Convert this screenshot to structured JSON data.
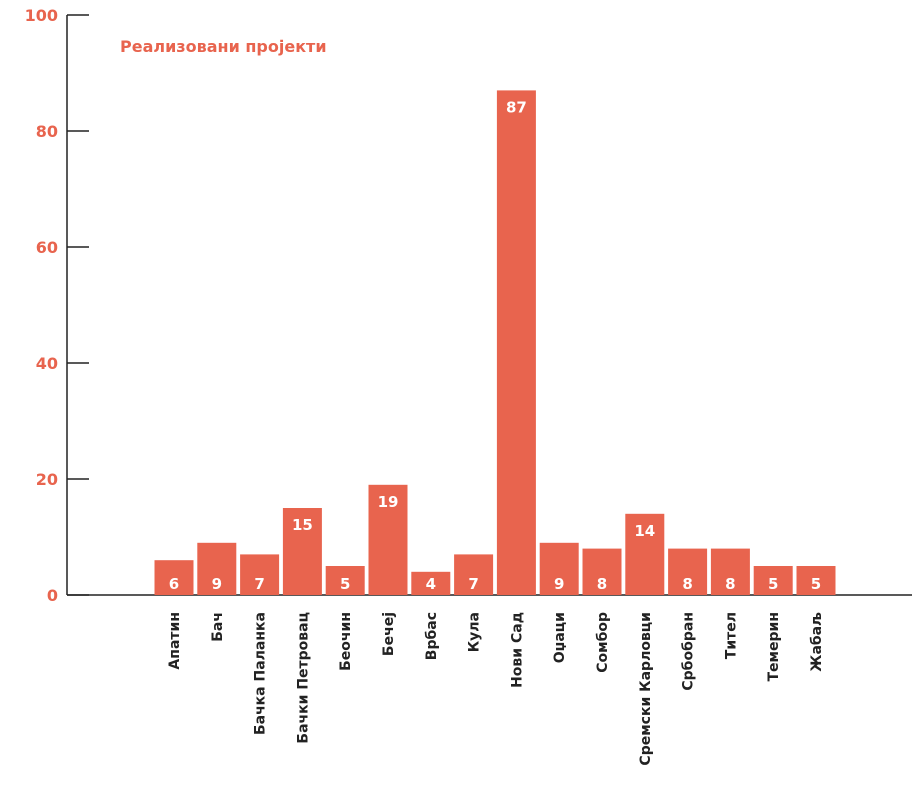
{
  "chart_data": {
    "type": "bar",
    "title": "Реализовани пројекти",
    "categories": [
      "Апатин",
      "Бач",
      "Бачка Паланка",
      "Бачки Петровац",
      "Беочин",
      "Бечеј",
      "Врбас",
      "Кула",
      "Нови Сад",
      "Оџаци",
      "Сомбор",
      "Сремски Карловци",
      "Србобран",
      "Тител",
      "Темерин",
      "Жабаљ"
    ],
    "values": [
      6,
      9,
      7,
      15,
      5,
      19,
      4,
      7,
      87,
      9,
      8,
      14,
      8,
      8,
      5,
      5
    ],
    "yticks": [
      0,
      20,
      40,
      60,
      80,
      100
    ],
    "ylim": [
      0,
      100
    ],
    "bar_color": "#e8644e",
    "axis_color": "#222222",
    "tick_color": "#e8644e",
    "grid": false,
    "legend": "none"
  }
}
